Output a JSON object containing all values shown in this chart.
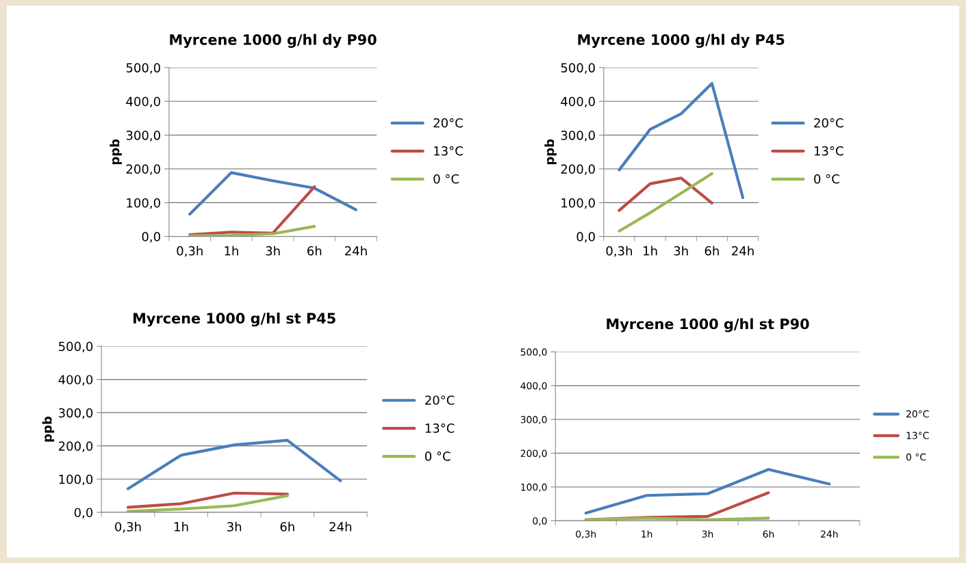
{
  "chart_data": [
    {
      "type": "line",
      "title": "Myrcene 1000 g/hl dy P90",
      "ylabel": "ppb",
      "categories": [
        "0,3h",
        "1h",
        "3h",
        "6h",
        "24h"
      ],
      "series": [
        {
          "name": "20°C",
          "color": "#4a7ebb",
          "values": [
            66,
            189,
            165,
            143,
            79
          ]
        },
        {
          "name": "13°C",
          "color": "#be4b48",
          "values": [
            5,
            13,
            10,
            147,
            null
          ]
        },
        {
          "name": "0 °C",
          "color": "#98b954",
          "values": [
            2,
            3,
            8,
            30,
            null
          ]
        }
      ],
      "ylim": [
        0,
        500
      ],
      "yticks": [
        {
          "value": 0,
          "label": "0,0"
        },
        {
          "value": 100,
          "label": "100,0"
        },
        {
          "value": 200,
          "label": "200,0"
        },
        {
          "value": 300,
          "label": "300,0"
        },
        {
          "value": 400,
          "label": "400,0"
        },
        {
          "value": 500,
          "label": "500,0"
        }
      ],
      "grid": "y",
      "legend": "right"
    },
    {
      "type": "line",
      "title": "Myrcene 1000 g/hl dy P45",
      "ylabel": "ppb",
      "categories": [
        "0,3h",
        "1h",
        "3h",
        "6h",
        "24h"
      ],
      "series": [
        {
          "name": "20°C",
          "color": "#4a7ebb",
          "values": [
            197,
            317,
            363,
            453,
            115
          ]
        },
        {
          "name": "13°C",
          "color": "#be4b48",
          "values": [
            77,
            156,
            173,
            99,
            null
          ]
        },
        {
          "name": "0 °C",
          "color": "#98b954",
          "values": [
            16,
            70,
            128,
            186,
            null
          ]
        }
      ],
      "ylim": [
        0,
        500
      ],
      "yticks": [
        {
          "value": 0,
          "label": "0,0"
        },
        {
          "value": 100,
          "label": "100,0"
        },
        {
          "value": 200,
          "label": "200,0"
        },
        {
          "value": 300,
          "label": "300,0"
        },
        {
          "value": 400,
          "label": "400,0"
        },
        {
          "value": 500,
          "label": "500,0"
        }
      ],
      "grid": "y",
      "legend": "right"
    },
    {
      "type": "line",
      "title": "Myrcene 1000 g/hl st P45",
      "ylabel": "ppb",
      "categories": [
        "0,3h",
        "1h",
        "3h",
        "6h",
        "24h"
      ],
      "series": [
        {
          "name": "20°C",
          "color": "#4a7ebb",
          "values": [
            71,
            172,
            203,
            217,
            95
          ]
        },
        {
          "name": "13°C",
          "color": "#be4b48",
          "values": [
            15,
            26,
            58,
            55,
            null
          ]
        },
        {
          "name": "0 °C",
          "color": "#98b954",
          "values": [
            3,
            10,
            20,
            50,
            null
          ]
        }
      ],
      "ylim": [
        0,
        500
      ],
      "yticks": [
        {
          "value": 0,
          "label": "0,0"
        },
        {
          "value": 100,
          "label": "100,0"
        },
        {
          "value": 200,
          "label": "200,0"
        },
        {
          "value": 300,
          "label": "300,0"
        },
        {
          "value": 400,
          "label": "400,0"
        },
        {
          "value": 500,
          "label": "500,0"
        }
      ],
      "grid": "y",
      "legend": "right"
    },
    {
      "type": "line",
      "title": "Myrcene 1000 g/hl st P90",
      "categories": [
        "0,3h",
        "1h",
        "3h",
        "6h",
        "24h"
      ],
      "series": [
        {
          "name": "20°C",
          "color": "#4a7ebb",
          "values": [
            23,
            75,
            80,
            152,
            109
          ]
        },
        {
          "name": "13°C",
          "color": "#be4b48",
          "values": [
            3,
            10,
            13,
            83,
            null
          ]
        },
        {
          "name": "0 °C",
          "color": "#98b954",
          "values": [
            3,
            8,
            3,
            8,
            null
          ]
        }
      ],
      "ylim": [
        0,
        500
      ],
      "yticks": [
        {
          "value": 0,
          "label": "0,0"
        },
        {
          "value": 100,
          "label": "100,0"
        },
        {
          "value": 200,
          "label": "200,0"
        },
        {
          "value": 300,
          "label": "300,0"
        },
        {
          "value": 400,
          "label": "400,0"
        },
        {
          "value": 500,
          "label": "500,0"
        }
      ],
      "grid": "y",
      "legend": "right"
    }
  ]
}
